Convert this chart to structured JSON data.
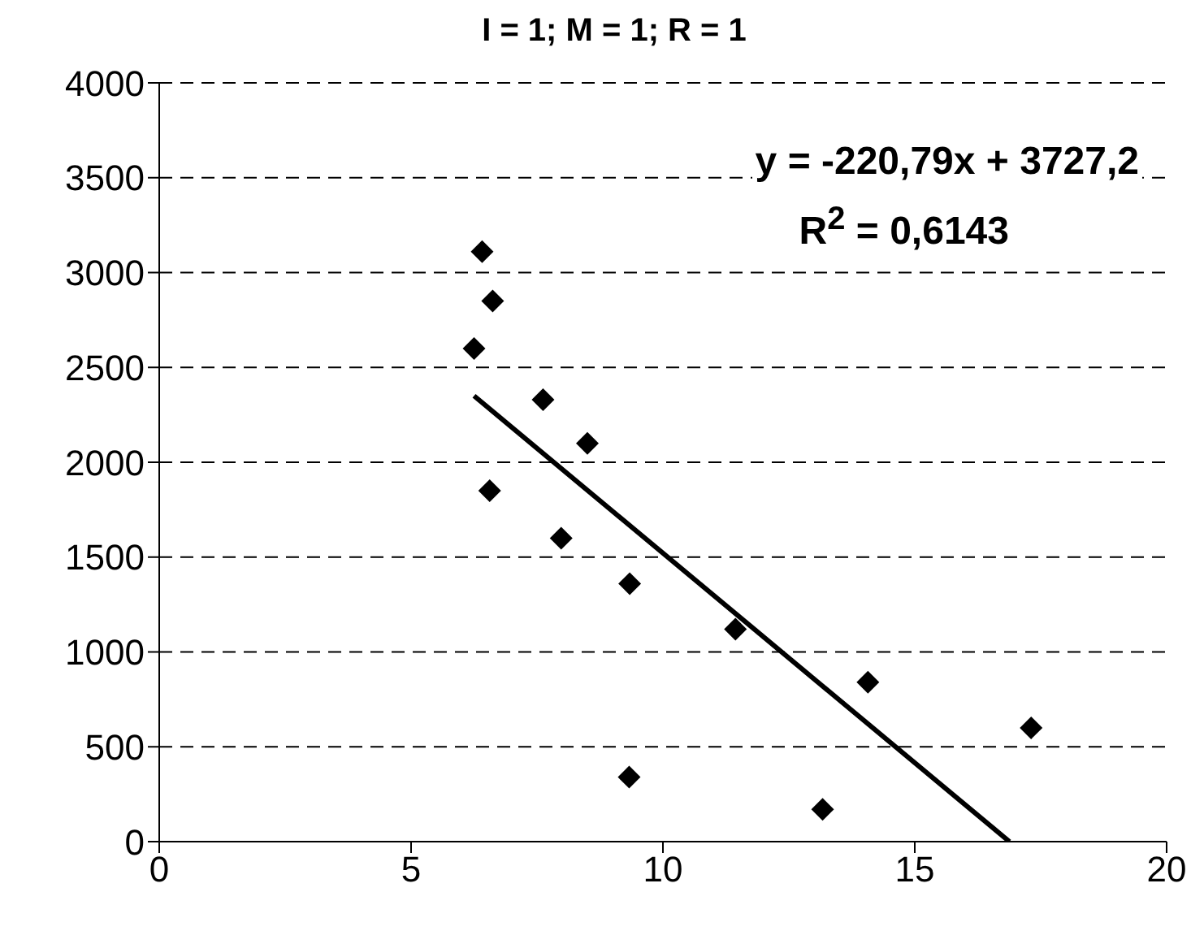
{
  "chart_data": {
    "type": "scatter",
    "title": "I = 1; M = 1; R = 1",
    "x": [
      6.41,
      6.62,
      6.25,
      7.62,
      8.5,
      6.56,
      7.98,
      9.34,
      11.44,
      14.07,
      17.31,
      9.33,
      13.17
    ],
    "series": [
      {
        "color": "#000000",
        "marker": "diamond",
        "values": [
          3110,
          2850,
          2600,
          2330,
          2100,
          1850,
          1600,
          1360,
          1120,
          840,
          600,
          340,
          170
        ]
      },
      {
        "type": "line",
        "color": "#000000",
        "marker": "none",
        "line_style": "solid",
        "x": [
          6.25,
          16.88
        ],
        "values": [
          2350,
          0
        ]
      }
    ],
    "annotations": [
      "y = -220,79x + 3727,2",
      "R$^{2}$ = 0,6143"
    ],
    "xlim": [
      0,
      20
    ],
    "xticks": [
      0,
      5,
      10,
      15,
      20
    ],
    "ylim": [
      0,
      4000
    ],
    "yticks": [
      0,
      500,
      1000,
      1500,
      2000,
      2500,
      3000,
      3500,
      4000
    ],
    "grid": "y"
  }
}
